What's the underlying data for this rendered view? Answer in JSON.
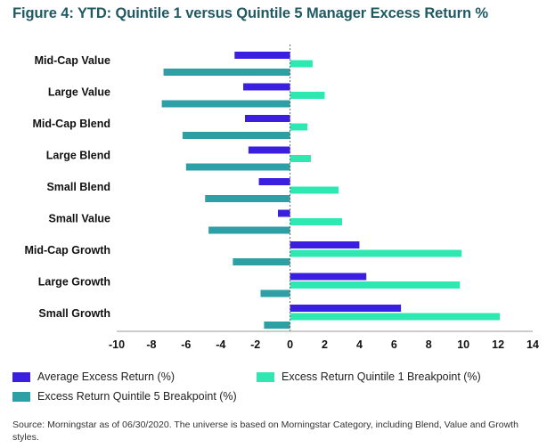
{
  "chart_data": {
    "type": "bar",
    "orientation": "horizontal",
    "title": "Figure 4: YTD: Quintile 1 versus Quintile 5 Manager Excess Return %",
    "categories": [
      "Mid-Cap Value",
      "Large Value",
      "Mid-Cap Blend",
      "Large Blend",
      "Small Blend",
      "Small Value",
      "Mid-Cap Growth",
      "Large Growth",
      "Small Growth"
    ],
    "series": [
      {
        "name": "Average Excess Return (%)",
        "color": "#3b1fe0",
        "values": [
          -3.2,
          -2.7,
          -2.6,
          -2.4,
          -1.8,
          -0.7,
          4.0,
          4.4,
          6.4
        ]
      },
      {
        "name": "Excess Return Quintile 1 Breakpoint (%)",
        "color": "#2de8b0",
        "values": [
          1.3,
          2.0,
          1.0,
          1.2,
          2.8,
          3.0,
          9.9,
          9.8,
          12.1
        ]
      },
      {
        "name": "Excess Return Quintile 5 Breakpoint (%)",
        "color": "#2f9fa6",
        "values": [
          -7.3,
          -7.4,
          -6.2,
          -6.0,
          -4.9,
          -4.7,
          -3.3,
          -1.7,
          -1.5
        ]
      }
    ],
    "xlim": [
      -10,
      14
    ],
    "xticks": [
      "-10",
      "-8",
      "-6",
      "-4",
      "-2",
      "0",
      "2",
      "4",
      "6",
      "8",
      "10",
      "12",
      "14"
    ],
    "grid": false,
    "legend_position": "bottom",
    "source": "Source: Morningstar as of 06/30/2020. The universe is based on Morningstar Category, including Blend, Value and Growth styles."
  }
}
